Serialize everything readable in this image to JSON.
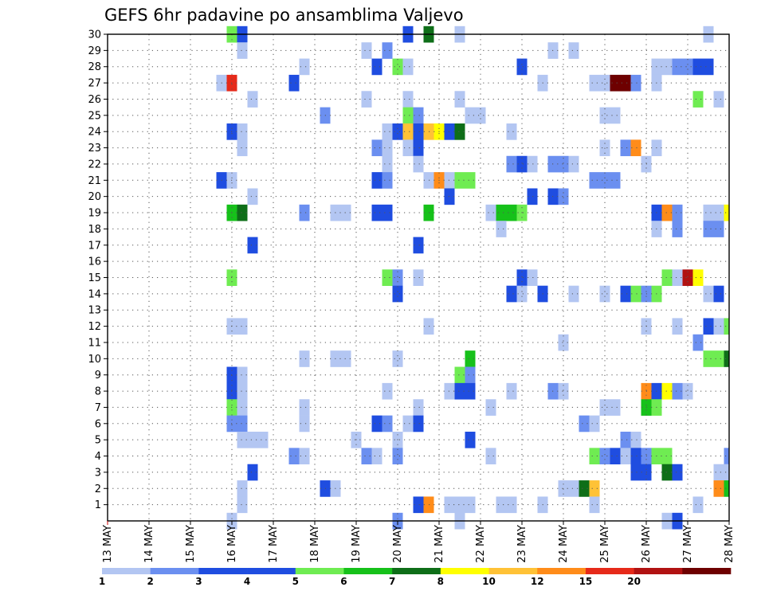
{
  "chart_data": {
    "type": "heatmap",
    "title": "GEFS 6hr padavine po ansamblima Valjevo",
    "xlabel": "",
    "ylabel": "",
    "x_tick_labels": [
      "13 MAY",
      "14 MAY",
      "15 MAY",
      "16 MAY",
      "17 MAY",
      "18 MAY",
      "19 MAY",
      "20 MAY",
      "21 MAY",
      "22 MAY",
      "23 MAY",
      "24 MAY",
      "25 MAY",
      "26 MAY",
      "27 MAY",
      "28 MAY"
    ],
    "y_tick_labels": [
      "1",
      "2",
      "3",
      "4",
      "5",
      "6",
      "7",
      "8",
      "9",
      "10",
      "11",
      "12",
      "13",
      "14",
      "15",
      "16",
      "17",
      "18",
      "19",
      "20",
      "21",
      "22",
      "23",
      "24",
      "25",
      "26",
      "27",
      "28",
      "29",
      "30"
    ],
    "x_start": "2024-05-13",
    "x_end": "2024-05-28",
    "steps_per_day": 4,
    "ylim": [
      0,
      30
    ],
    "grid": true,
    "colorbar": {
      "levels": [
        "1",
        "2",
        "3",
        "4",
        "5",
        "6",
        "7",
        "8",
        "10",
        "12",
        "15",
        "20"
      ],
      "colors": [
        "#b3c6f2",
        "#6b8ff0",
        "#1f4de0",
        "#1f4de0",
        "#6fec52",
        "#16c11a",
        "#0e6e18",
        "#ffff00",
        "#ffc236",
        "#ff8c1a",
        "#e62a1a",
        "#b11212",
        "#6e0000"
      ]
    },
    "cells": [
      {
        "t": 12,
        "m": 30,
        "c": 4
      },
      {
        "t": 13,
        "m": 30,
        "c": 2
      },
      {
        "t": 29,
        "m": 30,
        "c": 2
      },
      {
        "t": 31,
        "m": 30,
        "c": 6
      },
      {
        "t": 34,
        "m": 30,
        "c": 0
      },
      {
        "t": 58,
        "m": 30,
        "c": 0
      },
      {
        "t": 13,
        "m": 29,
        "c": 0
      },
      {
        "t": 25,
        "m": 29,
        "c": 0
      },
      {
        "t": 27,
        "m": 29,
        "c": 1
      },
      {
        "t": 43,
        "m": 29,
        "c": 0
      },
      {
        "t": 45,
        "m": 29,
        "c": 0
      },
      {
        "t": 19,
        "m": 28,
        "c": 0
      },
      {
        "t": 26,
        "m": 28,
        "c": 2
      },
      {
        "t": 28,
        "m": 28,
        "c": 4
      },
      {
        "t": 29,
        "m": 28,
        "c": 0
      },
      {
        "t": 40,
        "m": 28,
        "c": 2
      },
      {
        "t": 53,
        "m": 28,
        "c": 0
      },
      {
        "t": 54,
        "m": 28,
        "c": 0
      },
      {
        "t": 55,
        "m": 28,
        "c": 1
      },
      {
        "t": 56,
        "m": 28,
        "c": 1
      },
      {
        "t": 57,
        "m": 28,
        "c": 2
      },
      {
        "t": 58,
        "m": 28,
        "c": 2
      },
      {
        "t": 11,
        "m": 27,
        "c": 0
      },
      {
        "t": 12,
        "m": 27,
        "c": 10
      },
      {
        "t": 18,
        "m": 27,
        "c": 2
      },
      {
        "t": 42,
        "m": 27,
        "c": 0
      },
      {
        "t": 47,
        "m": 27,
        "c": 0
      },
      {
        "t": 48,
        "m": 27,
        "c": 0
      },
      {
        "t": 49,
        "m": 27,
        "c": 12
      },
      {
        "t": 50,
        "m": 27,
        "c": 12
      },
      {
        "t": 51,
        "m": 27,
        "c": 1
      },
      {
        "t": 53,
        "m": 27,
        "c": 0
      },
      {
        "t": 14,
        "m": 26,
        "c": 0
      },
      {
        "t": 25,
        "m": 26,
        "c": 0
      },
      {
        "t": 29,
        "m": 26,
        "c": 0
      },
      {
        "t": 34,
        "m": 26,
        "c": 0
      },
      {
        "t": 57,
        "m": 26,
        "c": 4
      },
      {
        "t": 59,
        "m": 26,
        "c": 0
      },
      {
        "t": 21,
        "m": 25,
        "c": 1
      },
      {
        "t": 29,
        "m": 25,
        "c": 4
      },
      {
        "t": 30,
        "m": 25,
        "c": 1
      },
      {
        "t": 35,
        "m": 25,
        "c": 0
      },
      {
        "t": 36,
        "m": 25,
        "c": 0
      },
      {
        "t": 48,
        "m": 25,
        "c": 0
      },
      {
        "t": 49,
        "m": 25,
        "c": 0
      },
      {
        "t": 12,
        "m": 24,
        "c": 2
      },
      {
        "t": 13,
        "m": 24,
        "c": 0
      },
      {
        "t": 27,
        "m": 24,
        "c": 0
      },
      {
        "t": 28,
        "m": 24,
        "c": 2
      },
      {
        "t": 29,
        "m": 24,
        "c": 8
      },
      {
        "t": 30,
        "m": 24,
        "c": 2
      },
      {
        "t": 31,
        "m": 24,
        "c": 8
      },
      {
        "t": 32,
        "m": 24,
        "c": 7
      },
      {
        "t": 33,
        "m": 24,
        "c": 2
      },
      {
        "t": 34,
        "m": 24,
        "c": 6
      },
      {
        "t": 39,
        "m": 24,
        "c": 0
      },
      {
        "t": 13,
        "m": 23,
        "c": 0
      },
      {
        "t": 26,
        "m": 23,
        "c": 1
      },
      {
        "t": 27,
        "m": 23,
        "c": 0
      },
      {
        "t": 29,
        "m": 23,
        "c": 0
      },
      {
        "t": 30,
        "m": 23,
        "c": 2
      },
      {
        "t": 48,
        "m": 23,
        "c": 0
      },
      {
        "t": 50,
        "m": 23,
        "c": 1
      },
      {
        "t": 51,
        "m": 23,
        "c": 9
      },
      {
        "t": 53,
        "m": 23,
        "c": 0
      },
      {
        "t": 27,
        "m": 22,
        "c": 0
      },
      {
        "t": 30,
        "m": 22,
        "c": 0
      },
      {
        "t": 39,
        "m": 22,
        "c": 1
      },
      {
        "t": 40,
        "m": 22,
        "c": 2
      },
      {
        "t": 41,
        "m": 22,
        "c": 0
      },
      {
        "t": 43,
        "m": 22,
        "c": 1
      },
      {
        "t": 44,
        "m": 22,
        "c": 1
      },
      {
        "t": 45,
        "m": 22,
        "c": 0
      },
      {
        "t": 52,
        "m": 22,
        "c": 0
      },
      {
        "t": 11,
        "m": 21,
        "c": 2
      },
      {
        "t": 12,
        "m": 21,
        "c": 0
      },
      {
        "t": 26,
        "m": 21,
        "c": 2
      },
      {
        "t": 27,
        "m": 21,
        "c": 1
      },
      {
        "t": 31,
        "m": 21,
        "c": 0
      },
      {
        "t": 32,
        "m": 21,
        "c": 9
      },
      {
        "t": 33,
        "m": 21,
        "c": 0
      },
      {
        "t": 34,
        "m": 21,
        "c": 4
      },
      {
        "t": 35,
        "m": 21,
        "c": 4
      },
      {
        "t": 47,
        "m": 21,
        "c": 1
      },
      {
        "t": 48,
        "m": 21,
        "c": 1
      },
      {
        "t": 49,
        "m": 21,
        "c": 1
      },
      {
        "t": 14,
        "m": 20,
        "c": 0
      },
      {
        "t": 33,
        "m": 20,
        "c": 2
      },
      {
        "t": 41,
        "m": 20,
        "c": 2
      },
      {
        "t": 43,
        "m": 20,
        "c": 2
      },
      {
        "t": 44,
        "m": 20,
        "c": 1
      },
      {
        "t": 12,
        "m": 19,
        "c": 5
      },
      {
        "t": 13,
        "m": 19,
        "c": 6
      },
      {
        "t": 19,
        "m": 19,
        "c": 1
      },
      {
        "t": 22,
        "m": 19,
        "c": 0
      },
      {
        "t": 23,
        "m": 19,
        "c": 0
      },
      {
        "t": 26,
        "m": 19,
        "c": 2
      },
      {
        "t": 27,
        "m": 19,
        "c": 2
      },
      {
        "t": 31,
        "m": 19,
        "c": 5
      },
      {
        "t": 37,
        "m": 19,
        "c": 0
      },
      {
        "t": 38,
        "m": 19,
        "c": 5
      },
      {
        "t": 39,
        "m": 19,
        "c": 5
      },
      {
        "t": 40,
        "m": 19,
        "c": 4
      },
      {
        "t": 53,
        "m": 19,
        "c": 2
      },
      {
        "t": 54,
        "m": 19,
        "c": 9
      },
      {
        "t": 55,
        "m": 19,
        "c": 1
      },
      {
        "t": 58,
        "m": 19,
        "c": 0
      },
      {
        "t": 59,
        "m": 19,
        "c": 0
      },
      {
        "t": 60,
        "m": 19,
        "c": 7
      },
      {
        "t": 38,
        "m": 18,
        "c": 0
      },
      {
        "t": 53,
        "m": 18,
        "c": 0
      },
      {
        "t": 55,
        "m": 18,
        "c": 1
      },
      {
        "t": 58,
        "m": 18,
        "c": 1
      },
      {
        "t": 59,
        "m": 18,
        "c": 1
      },
      {
        "t": 14,
        "m": 17,
        "c": 2
      },
      {
        "t": 30,
        "m": 17,
        "c": 2
      },
      {
        "t": 12,
        "m": 15,
        "c": 4
      },
      {
        "t": 27,
        "m": 15,
        "c": 4
      },
      {
        "t": 28,
        "m": 15,
        "c": 1
      },
      {
        "t": 30,
        "m": 15,
        "c": 0
      },
      {
        "t": 40,
        "m": 15,
        "c": 2
      },
      {
        "t": 41,
        "m": 15,
        "c": 0
      },
      {
        "t": 54,
        "m": 15,
        "c": 4
      },
      {
        "t": 55,
        "m": 15,
        "c": 0
      },
      {
        "t": 56,
        "m": 15,
        "c": 11
      },
      {
        "t": 57,
        "m": 15,
        "c": 7
      },
      {
        "t": 28,
        "m": 14,
        "c": 2
      },
      {
        "t": 39,
        "m": 14,
        "c": 2
      },
      {
        "t": 40,
        "m": 14,
        "c": 0
      },
      {
        "t": 42,
        "m": 14,
        "c": 2
      },
      {
        "t": 45,
        "m": 14,
        "c": 0
      },
      {
        "t": 48,
        "m": 14,
        "c": 0
      },
      {
        "t": 50,
        "m": 14,
        "c": 2
      },
      {
        "t": 51,
        "m": 14,
        "c": 4
      },
      {
        "t": 52,
        "m": 14,
        "c": 1
      },
      {
        "t": 53,
        "m": 14,
        "c": 4
      },
      {
        "t": 58,
        "m": 14,
        "c": 0
      },
      {
        "t": 59,
        "m": 14,
        "c": 2
      },
      {
        "t": 12,
        "m": 12,
        "c": 0
      },
      {
        "t": 13,
        "m": 12,
        "c": 0
      },
      {
        "t": 31,
        "m": 12,
        "c": 0
      },
      {
        "t": 52,
        "m": 12,
        "c": 0
      },
      {
        "t": 55,
        "m": 12,
        "c": 0
      },
      {
        "t": 58,
        "m": 12,
        "c": 2
      },
      {
        "t": 59,
        "m": 12,
        "c": 0
      },
      {
        "t": 60,
        "m": 12,
        "c": 4
      },
      {
        "t": 44,
        "m": 11,
        "c": 0
      },
      {
        "t": 57,
        "m": 11,
        "c": 1
      },
      {
        "t": 19,
        "m": 10,
        "c": 0
      },
      {
        "t": 22,
        "m": 10,
        "c": 0
      },
      {
        "t": 23,
        "m": 10,
        "c": 0
      },
      {
        "t": 28,
        "m": 10,
        "c": 0
      },
      {
        "t": 35,
        "m": 10,
        "c": 5
      },
      {
        "t": 58,
        "m": 10,
        "c": 4
      },
      {
        "t": 59,
        "m": 10,
        "c": 4
      },
      {
        "t": 60,
        "m": 10,
        "c": 6
      },
      {
        "t": 12,
        "m": 9,
        "c": 2
      },
      {
        "t": 13,
        "m": 9,
        "c": 0
      },
      {
        "t": 34,
        "m": 9,
        "c": 4
      },
      {
        "t": 35,
        "m": 9,
        "c": 1
      },
      {
        "t": 12,
        "m": 8,
        "c": 2
      },
      {
        "t": 13,
        "m": 8,
        "c": 0
      },
      {
        "t": 27,
        "m": 8,
        "c": 0
      },
      {
        "t": 33,
        "m": 8,
        "c": 0
      },
      {
        "t": 34,
        "m": 8,
        "c": 2
      },
      {
        "t": 35,
        "m": 8,
        "c": 2
      },
      {
        "t": 39,
        "m": 8,
        "c": 0
      },
      {
        "t": 43,
        "m": 8,
        "c": 1
      },
      {
        "t": 44,
        "m": 8,
        "c": 0
      },
      {
        "t": 52,
        "m": 8,
        "c": 9
      },
      {
        "t": 53,
        "m": 8,
        "c": 2
      },
      {
        "t": 54,
        "m": 8,
        "c": 7
      },
      {
        "t": 55,
        "m": 8,
        "c": 1
      },
      {
        "t": 56,
        "m": 8,
        "c": 0
      },
      {
        "t": 12,
        "m": 7,
        "c": 4
      },
      {
        "t": 13,
        "m": 7,
        "c": 0
      },
      {
        "t": 19,
        "m": 7,
        "c": 0
      },
      {
        "t": 30,
        "m": 7,
        "c": 0
      },
      {
        "t": 37,
        "m": 7,
        "c": 0
      },
      {
        "t": 48,
        "m": 7,
        "c": 0
      },
      {
        "t": 49,
        "m": 7,
        "c": 0
      },
      {
        "t": 52,
        "m": 7,
        "c": 5
      },
      {
        "t": 53,
        "m": 7,
        "c": 4
      },
      {
        "t": 12,
        "m": 6,
        "c": 1
      },
      {
        "t": 13,
        "m": 6,
        "c": 1
      },
      {
        "t": 19,
        "m": 6,
        "c": 0
      },
      {
        "t": 26,
        "m": 6,
        "c": 2
      },
      {
        "t": 27,
        "m": 6,
        "c": 1
      },
      {
        "t": 29,
        "m": 6,
        "c": 0
      },
      {
        "t": 30,
        "m": 6,
        "c": 2
      },
      {
        "t": 46,
        "m": 6,
        "c": 1
      },
      {
        "t": 47,
        "m": 6,
        "c": 0
      },
      {
        "t": 13,
        "m": 5,
        "c": 0
      },
      {
        "t": 14,
        "m": 5,
        "c": 0
      },
      {
        "t": 15,
        "m": 5,
        "c": 0
      },
      {
        "t": 24,
        "m": 5,
        "c": 0
      },
      {
        "t": 28,
        "m": 5,
        "c": 0
      },
      {
        "t": 35,
        "m": 5,
        "c": 2
      },
      {
        "t": 50,
        "m": 5,
        "c": 1
      },
      {
        "t": 51,
        "m": 5,
        "c": 0
      },
      {
        "t": 18,
        "m": 4,
        "c": 1
      },
      {
        "t": 19,
        "m": 4,
        "c": 0
      },
      {
        "t": 25,
        "m": 4,
        "c": 1
      },
      {
        "t": 26,
        "m": 4,
        "c": 0
      },
      {
        "t": 28,
        "m": 4,
        "c": 1
      },
      {
        "t": 37,
        "m": 4,
        "c": 0
      },
      {
        "t": 47,
        "m": 4,
        "c": 4
      },
      {
        "t": 48,
        "m": 4,
        "c": 1
      },
      {
        "t": 49,
        "m": 4,
        "c": 2
      },
      {
        "t": 50,
        "m": 4,
        "c": 0
      },
      {
        "t": 51,
        "m": 4,
        "c": 2
      },
      {
        "t": 52,
        "m": 4,
        "c": 1
      },
      {
        "t": 53,
        "m": 4,
        "c": 4
      },
      {
        "t": 54,
        "m": 4,
        "c": 4
      },
      {
        "t": 60,
        "m": 4,
        "c": 1
      },
      {
        "t": 14,
        "m": 3,
        "c": 2
      },
      {
        "t": 51,
        "m": 3,
        "c": 2
      },
      {
        "t": 52,
        "m": 3,
        "c": 2
      },
      {
        "t": 54,
        "m": 3,
        "c": 6
      },
      {
        "t": 55,
        "m": 3,
        "c": 2
      },
      {
        "t": 59,
        "m": 3,
        "c": 0
      },
      {
        "t": 60,
        "m": 3,
        "c": 0
      },
      {
        "t": 13,
        "m": 2,
        "c": 0
      },
      {
        "t": 21,
        "m": 2,
        "c": 2
      },
      {
        "t": 22,
        "m": 2,
        "c": 0
      },
      {
        "t": 44,
        "m": 2,
        "c": 0
      },
      {
        "t": 45,
        "m": 2,
        "c": 0
      },
      {
        "t": 46,
        "m": 2,
        "c": 6
      },
      {
        "t": 47,
        "m": 2,
        "c": 8
      },
      {
        "t": 59,
        "m": 2,
        "c": 9
      },
      {
        "t": 60,
        "m": 2,
        "c": 5
      },
      {
        "t": 13,
        "m": 1,
        "c": 0
      },
      {
        "t": 30,
        "m": 1,
        "c": 2
      },
      {
        "t": 31,
        "m": 1,
        "c": 9
      },
      {
        "t": 33,
        "m": 1,
        "c": 0
      },
      {
        "t": 34,
        "m": 1,
        "c": 0
      },
      {
        "t": 35,
        "m": 1,
        "c": 0
      },
      {
        "t": 38,
        "m": 1,
        "c": 0
      },
      {
        "t": 39,
        "m": 1,
        "c": 0
      },
      {
        "t": 42,
        "m": 1,
        "c": 0
      },
      {
        "t": 47,
        "m": 1,
        "c": 0
      },
      {
        "t": 57,
        "m": 1,
        "c": 0
      },
      {
        "t": 12,
        "m": 0,
        "c": 0
      },
      {
        "t": 28,
        "m": 0,
        "c": 1
      },
      {
        "t": 34,
        "m": 0,
        "c": 0
      },
      {
        "t": 54,
        "m": 0,
        "c": 0
      },
      {
        "t": 55,
        "m": 0,
        "c": 2
      }
    ]
  }
}
